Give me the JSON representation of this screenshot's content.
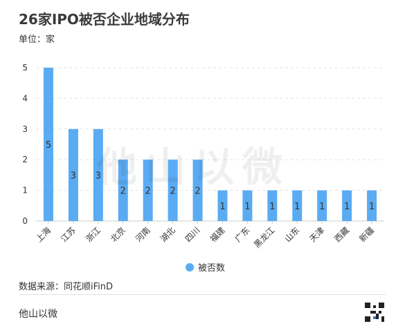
{
  "header": {
    "title": "26家IPO被否企业地域分布",
    "unit": "单位：家"
  },
  "watermark": "他山以微",
  "source": "数据来源：同花顺iFinD",
  "footer": {
    "brand": "他山以微"
  },
  "colors": {
    "bar": "#5aabf2",
    "grid": "#e3e3e3",
    "text": "#333333"
  },
  "chart_data": {
    "type": "bar",
    "title": "26家IPO被否企业地域分布",
    "ylabel": "单位：家",
    "ylim": [
      0,
      5
    ],
    "yticks": [
      0,
      1,
      2,
      3,
      4,
      5
    ],
    "categories": [
      "上海",
      "江苏",
      "浙江",
      "北京",
      "河南",
      "湖北",
      "四川",
      "福建",
      "广东",
      "黑龙江",
      "山东",
      "天津",
      "西藏",
      "新疆"
    ],
    "series": [
      {
        "name": "被否数",
        "values": [
          5,
          3,
          3,
          2,
          2,
          2,
          2,
          1,
          1,
          1,
          1,
          1,
          1,
          1
        ]
      }
    ],
    "legend": "bottom-center",
    "grid": true
  }
}
